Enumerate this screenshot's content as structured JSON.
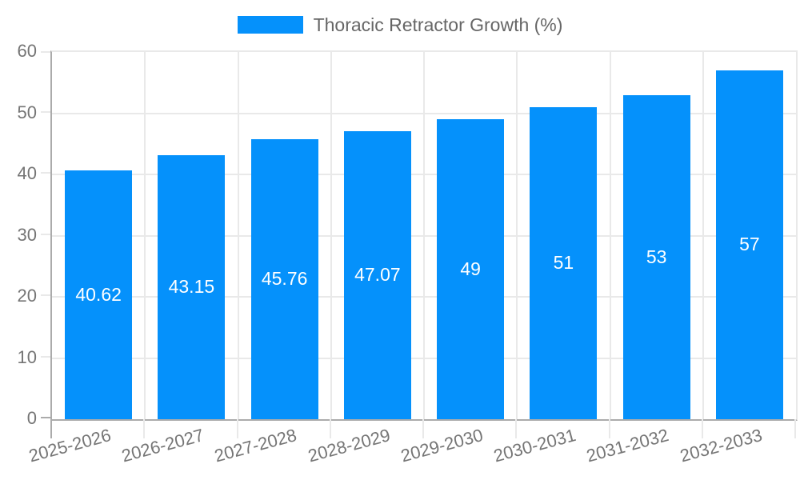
{
  "legend": {
    "label": "Thoracic Retractor Growth (%)"
  },
  "colors": {
    "bar": "#0591fb",
    "grid": "#e9e9e9",
    "axis": "#ababab",
    "tick_text": "#757575",
    "legend_text": "#666666",
    "value_text": "#ffffff"
  },
  "chart_data": {
    "type": "bar",
    "categories": [
      "2025-2026",
      "2026-2027",
      "2027-2028",
      "2028-2029",
      "2029-2030",
      "2030-2031",
      "2031-2032",
      "2032-2033"
    ],
    "series": [
      {
        "name": "Thoracic Retractor Growth (%)",
        "values": [
          40.62,
          43.15,
          45.76,
          47.07,
          49,
          51,
          53,
          57
        ]
      }
    ],
    "value_labels": [
      "40.62",
      "43.15",
      "45.76",
      "47.07",
      "49",
      "51",
      "53",
      "57"
    ],
    "title": "",
    "xlabel": "",
    "ylabel": "",
    "ylim": [
      0,
      60
    ],
    "yticks": [
      0,
      10,
      20,
      30,
      40,
      50,
      60
    ],
    "grid": true,
    "legend_position": "top"
  }
}
